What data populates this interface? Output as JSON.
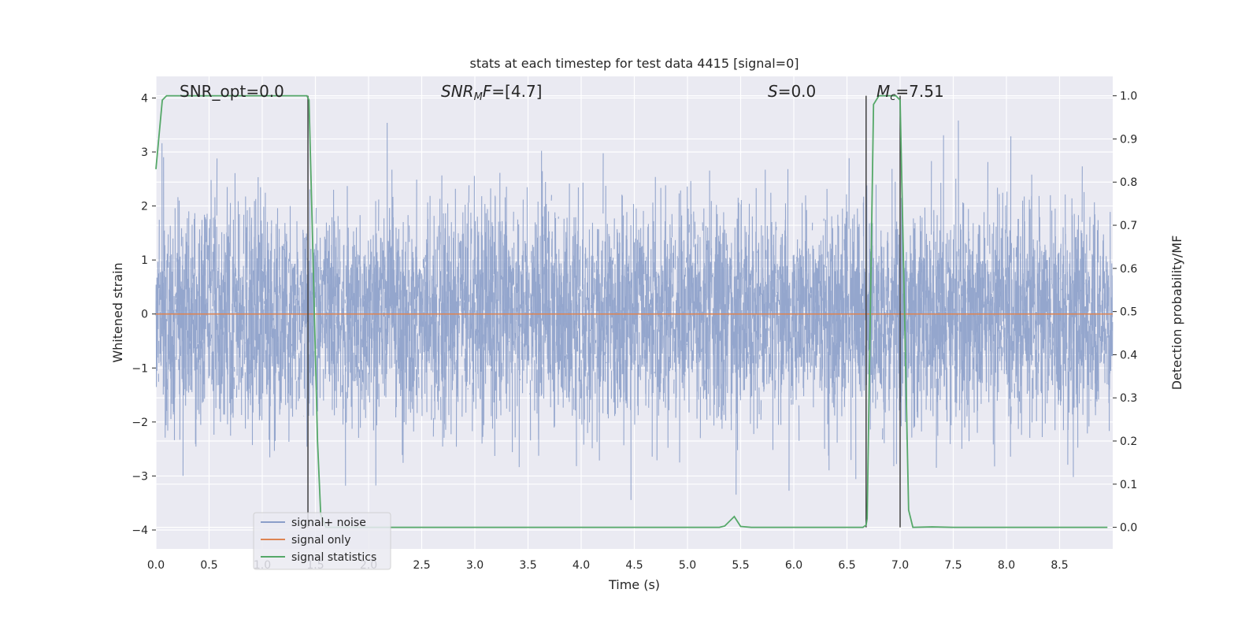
{
  "chart_data": {
    "type": "line",
    "title": "stats at each timestep for test data 4415 [signal=0]",
    "xlabel": "Time (s)",
    "ylabel": "Whitened strain",
    "y2label": "Detection probability/MF",
    "xlim": [
      0.0,
      9.0
    ],
    "ylim": [
      -4.35,
      4.4
    ],
    "y2lim": [
      -0.05,
      1.045
    ],
    "xticks": [
      0.0,
      0.5,
      1.0,
      1.5,
      2.0,
      2.5,
      3.0,
      3.5,
      4.0,
      4.5,
      5.0,
      5.5,
      6.0,
      6.5,
      7.0,
      7.5,
      8.0,
      8.5
    ],
    "xtick_labels": [
      "0.0",
      "0.5",
      "1.0",
      "1.5",
      "2.0",
      "2.5",
      "3.0",
      "3.5",
      "4.0",
      "4.5",
      "5.0",
      "5.5",
      "6.0",
      "6.5",
      "7.0",
      "7.5",
      "8.0",
      "8.5"
    ],
    "yticks": [
      -4,
      -3,
      -2,
      -1,
      0,
      1,
      2,
      3,
      4
    ],
    "ytick_labels": [
      "−4",
      "−3",
      "−2",
      "−1",
      "0",
      "1",
      "2",
      "3",
      "4"
    ],
    "y2ticks": [
      0.0,
      0.1,
      0.2,
      0.3,
      0.4,
      0.5,
      0.6,
      0.7,
      0.8,
      0.9,
      1.0
    ],
    "y2tick_labels": [
      "0.0",
      "0.1",
      "0.2",
      "0.3",
      "0.4",
      "0.5",
      "0.6",
      "0.7",
      "0.8",
      "0.9",
      "1.0"
    ],
    "grid": true,
    "legend_position": "lower-left",
    "annotations": [
      {
        "text": "SNR_opt=0.0"
      },
      {
        "text": "SNRMF=[4.7]"
      },
      {
        "text": "S=0.0"
      },
      {
        "text": "Mc=7.51"
      }
    ],
    "vlines": [
      1.43,
      6.68,
      7.0
    ],
    "colors": {
      "noise": "#8b9ec9",
      "signal": "#dd8452",
      "stats": "#55a868",
      "vline": "#404040",
      "face": "#eaeaf2",
      "grid": "#ffffff"
    },
    "series": [
      {
        "name": "signal+ noise",
        "kind": "noise",
        "axis": "left",
        "envelope_sd": 1.0,
        "max_abs": 4.0,
        "duration": 9.0
      },
      {
        "name": "signal only",
        "kind": "constant",
        "axis": "left",
        "y": 0.0
      },
      {
        "name": "signal statistics",
        "kind": "line",
        "axis": "right",
        "x": [
          0.0,
          0.06,
          0.1,
          0.2,
          0.5,
          1.0,
          1.35,
          1.42,
          1.44,
          1.47,
          1.52,
          1.55,
          1.6,
          2.0,
          3.0,
          4.0,
          5.0,
          5.3,
          5.35,
          5.44,
          5.5,
          5.6,
          6.0,
          6.5,
          6.65,
          6.68,
          6.69,
          6.75,
          6.8,
          6.9,
          6.96,
          7.0,
          7.05,
          7.08,
          7.12,
          7.3,
          7.5,
          8.0,
          8.5,
          8.95
        ],
        "y": [
          0.83,
          0.99,
          1.0,
          1.0,
          1.0,
          1.0,
          1.0,
          1.0,
          0.99,
          0.7,
          0.2,
          0.03,
          0.0,
          0.0,
          0.0,
          0.0,
          0.0,
          0.0,
          0.003,
          0.025,
          0.002,
          0.0,
          0.0,
          0.0,
          0.0,
          0.005,
          0.02,
          0.98,
          1.0,
          1.0,
          1.0,
          0.99,
          0.4,
          0.04,
          0.0,
          0.001,
          0.0,
          0.0,
          0.0,
          0.0
        ]
      }
    ]
  }
}
